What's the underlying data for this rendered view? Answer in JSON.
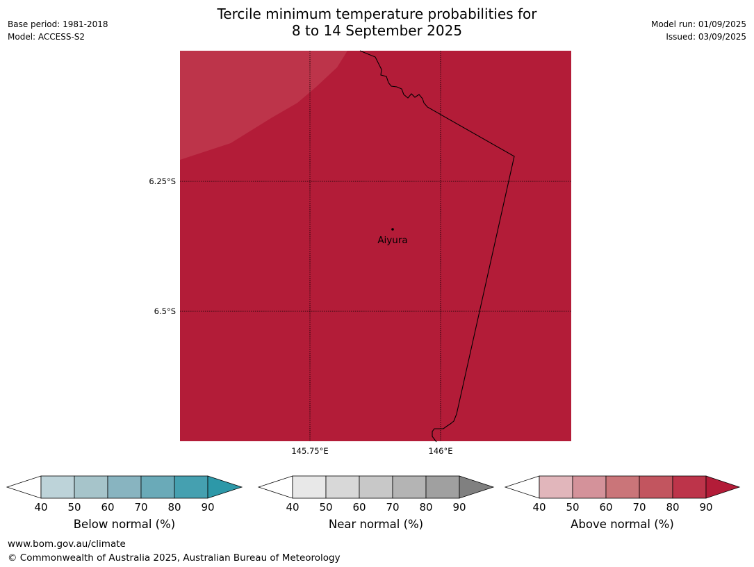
{
  "header": {
    "title_line1": "Tercile minimum temperature probabilities for",
    "title_line2": "8 to 14 September 2025",
    "base_period": "Base period: 1981-2018",
    "model": "Model: ACCESS-S2",
    "model_run": "Model run: 01/09/2025",
    "issued": "Issued: 03/09/2025"
  },
  "map": {
    "latitudes": [
      {
        "value": -6.25,
        "label": "6.25°S"
      },
      {
        "value": -6.5,
        "label": "6.5°S"
      }
    ],
    "longitudes": [
      {
        "value": 145.75,
        "label": "145.75°E"
      },
      {
        "value": 146.0,
        "label": "146°E"
      }
    ],
    "place": {
      "name": "Aiyura",
      "lat": -6.34,
      "lon": 145.9
    },
    "fill_category": "Above normal",
    "fill_probability_range": "80-90",
    "colors": {
      "main": "#b31c38",
      "lighter": "#bd344a",
      "border": "#000000"
    }
  },
  "colorbars": [
    {
      "label": "Below normal (%)",
      "ticks": [
        "40",
        "50",
        "60",
        "70",
        "80",
        "90"
      ],
      "colors": [
        "#ffffff",
        "#bdd3d9",
        "#a6c4ca",
        "#88b4c0",
        "#6aaab8",
        "#45a0b0",
        "#2d98a8"
      ]
    },
    {
      "label": "Near normal (%)",
      "ticks": [
        "40",
        "50",
        "60",
        "70",
        "80",
        "90"
      ],
      "colors": [
        "#ffffff",
        "#e8e8e8",
        "#d8d8d8",
        "#c8c8c8",
        "#b4b4b4",
        "#a0a0a0",
        "#808080"
      ]
    },
    {
      "label": "Above normal (%)",
      "ticks": [
        "40",
        "50",
        "60",
        "70",
        "80",
        "90"
      ],
      "colors": [
        "#ffffff",
        "#e1b6bb",
        "#d4929a",
        "#ca7579",
        "#c2555f",
        "#bd344a",
        "#b31c38"
      ]
    }
  ],
  "footer": {
    "website": "www.bom.gov.au/climate",
    "copyright": "© Commonwealth of Australia 2025, Australian Bureau of Meteorology"
  }
}
